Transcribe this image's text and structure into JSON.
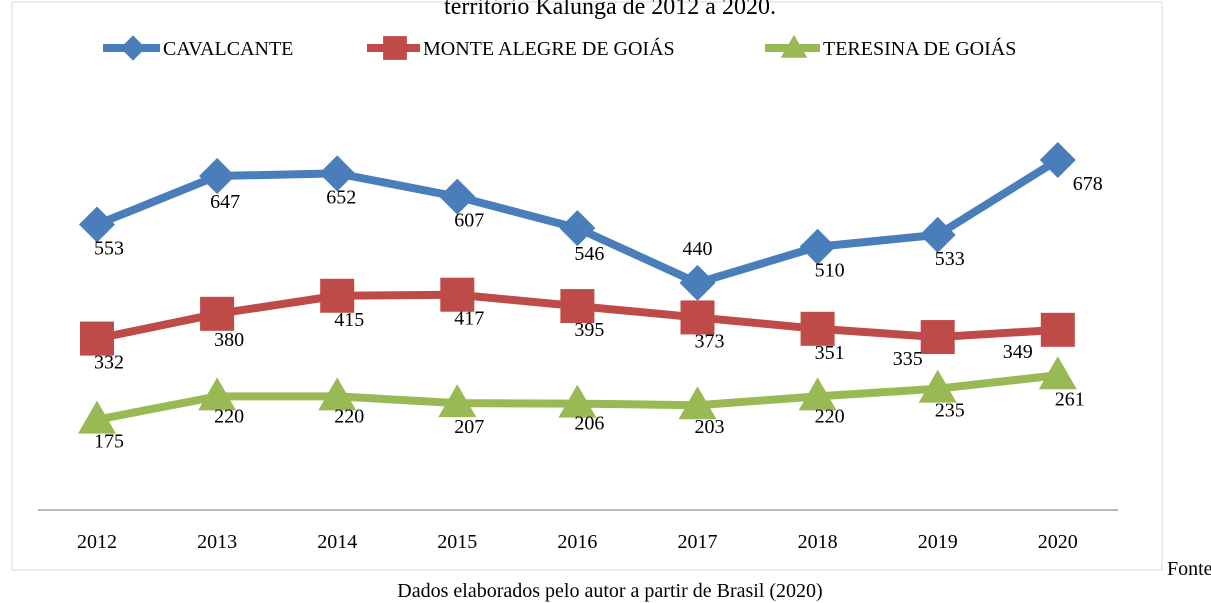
{
  "chart_data": {
    "type": "line",
    "title": "território Kalunga de 2012 a 2020.",
    "categories": [
      "2012",
      "2013",
      "2014",
      "2015",
      "2016",
      "2017",
      "2018",
      "2019",
      "2020"
    ],
    "series": [
      {
        "name": "CAVALCANTE",
        "color": "#4a7ebb",
        "marker": "diamond",
        "values": [
          553,
          647,
          652,
          607,
          546,
          440,
          510,
          533,
          678
        ]
      },
      {
        "name": "MONTE ALEGRE DE GOIÁS",
        "color": "#be4b48",
        "marker": "square",
        "values": [
          332,
          380,
          415,
          417,
          395,
          373,
          351,
          335,
          349
        ]
      },
      {
        "name": "TERESINA DE GOIÁS",
        "color": "#98b954",
        "marker": "triangle",
        "values": [
          175,
          220,
          220,
          207,
          206,
          203,
          220,
          235,
          261
        ]
      }
    ],
    "ylim": [
      0,
      800
    ],
    "legend": "top",
    "source_label": "Fonte:",
    "source_text": "Dados elaborados pelo autor a partir de Brasil (2020)"
  }
}
